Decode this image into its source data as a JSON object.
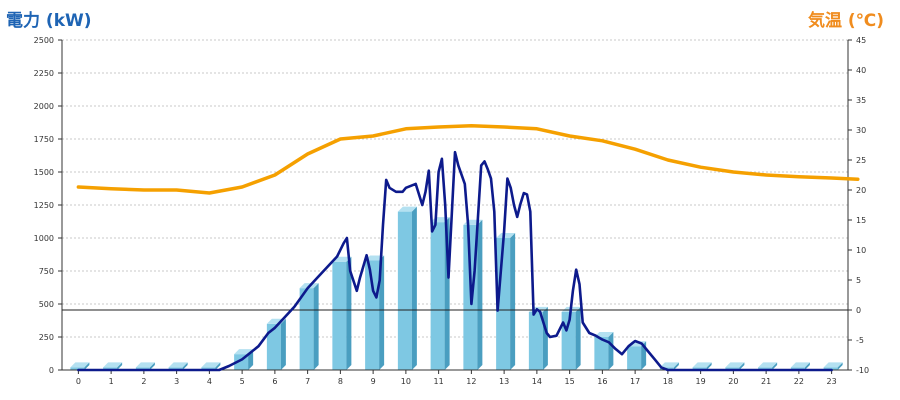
{
  "chart_data": {
    "type": "bar",
    "title_left": "電力 (kW)",
    "title_right": "気温 (℃)",
    "title_left_color": "#1e64b4",
    "title_right_color": "#f08c1e",
    "categories": [
      "0",
      "1",
      "2",
      "3",
      "4",
      "5",
      "6",
      "7",
      "8",
      "9",
      "10",
      "11",
      "12",
      "13",
      "14",
      "15",
      "16",
      "17",
      "18",
      "19",
      "20",
      "21",
      "22",
      "23"
    ],
    "left_axis": {
      "ylim": [
        0,
        2500
      ],
      "ticks": [
        0,
        250,
        500,
        750,
        1000,
        1250,
        1500,
        1750,
        2000,
        2250,
        2500
      ]
    },
    "right_axis": {
      "ylim": [
        -10,
        45
      ],
      "ticks": [
        -10,
        -5,
        0,
        5,
        10,
        15,
        20,
        25,
        30,
        35,
        40,
        45
      ]
    },
    "reference_line_temperature": 0,
    "grid": true,
    "series": [
      {
        "kind": "bar",
        "axis": "left",
        "color": "#7ec8e3",
        "values": [
          20,
          20,
          20,
          20,
          20,
          120,
          350,
          620,
          820,
          830,
          1200,
          1120,
          1100,
          1000,
          440,
          440,
          250,
          180,
          20,
          20,
          20,
          20,
          20,
          20
        ]
      },
      {
        "kind": "line",
        "axis": "left",
        "color": "#0d1a8c",
        "points": [
          [
            0,
            0
          ],
          [
            1,
            0
          ],
          [
            2,
            0
          ],
          [
            3,
            0
          ],
          [
            4,
            0
          ],
          [
            4.3,
            0
          ],
          [
            4.6,
            30
          ],
          [
            5,
            80
          ],
          [
            5.5,
            180
          ],
          [
            5.8,
            280
          ],
          [
            6,
            320
          ],
          [
            6.3,
            400
          ],
          [
            6.6,
            480
          ],
          [
            7,
            620
          ],
          [
            7.3,
            700
          ],
          [
            7.6,
            780
          ],
          [
            7.9,
            860
          ],
          [
            8.1,
            960
          ],
          [
            8.2,
            1000
          ],
          [
            8.3,
            750
          ],
          [
            8.5,
            600
          ],
          [
            8.6,
            700
          ],
          [
            8.8,
            870
          ],
          [
            8.9,
            760
          ],
          [
            9,
            600
          ],
          [
            9.1,
            550
          ],
          [
            9.2,
            680
          ],
          [
            9.3,
            1100
          ],
          [
            9.4,
            1440
          ],
          [
            9.5,
            1380
          ],
          [
            9.7,
            1350
          ],
          [
            9.9,
            1350
          ],
          [
            10,
            1380
          ],
          [
            10.3,
            1410
          ],
          [
            10.5,
            1250
          ],
          [
            10.6,
            1350
          ],
          [
            10.7,
            1510
          ],
          [
            10.8,
            1050
          ],
          [
            10.9,
            1100
          ],
          [
            11,
            1500
          ],
          [
            11.1,
            1600
          ],
          [
            11.2,
            1250
          ],
          [
            11.3,
            700
          ],
          [
            11.5,
            1650
          ],
          [
            11.6,
            1550
          ],
          [
            11.8,
            1410
          ],
          [
            11.9,
            1100
          ],
          [
            12,
            500
          ],
          [
            12.1,
            750
          ],
          [
            12.2,
            1150
          ],
          [
            12.3,
            1550
          ],
          [
            12.4,
            1580
          ],
          [
            12.5,
            1520
          ],
          [
            12.6,
            1450
          ],
          [
            12.7,
            1200
          ],
          [
            12.8,
            450
          ],
          [
            13,
            1050
          ],
          [
            13.1,
            1450
          ],
          [
            13.2,
            1380
          ],
          [
            13.3,
            1250
          ],
          [
            13.4,
            1160
          ],
          [
            13.5,
            1260
          ],
          [
            13.6,
            1340
          ],
          [
            13.7,
            1330
          ],
          [
            13.8,
            1200
          ],
          [
            13.9,
            420
          ],
          [
            14,
            460
          ],
          [
            14.1,
            440
          ],
          [
            14.3,
            280
          ],
          [
            14.4,
            250
          ],
          [
            14.6,
            260
          ],
          [
            14.8,
            360
          ],
          [
            14.9,
            300
          ],
          [
            15,
            380
          ],
          [
            15.1,
            600
          ],
          [
            15.2,
            760
          ],
          [
            15.3,
            650
          ],
          [
            15.4,
            360
          ],
          [
            15.6,
            280
          ],
          [
            15.8,
            260
          ],
          [
            16,
            230
          ],
          [
            16.2,
            210
          ],
          [
            16.4,
            160
          ],
          [
            16.6,
            120
          ],
          [
            16.8,
            180
          ],
          [
            17,
            220
          ],
          [
            17.2,
            200
          ],
          [
            17.4,
            140
          ],
          [
            17.6,
            80
          ],
          [
            17.8,
            20
          ],
          [
            18,
            0
          ],
          [
            19,
            0
          ],
          [
            20,
            0
          ],
          [
            21,
            0
          ],
          [
            22,
            0
          ],
          [
            23,
            0
          ]
        ]
      },
      {
        "kind": "line",
        "axis": "right",
        "color": "#f5a000",
        "points": [
          [
            0,
            20.5
          ],
          [
            1,
            20.2
          ],
          [
            2,
            20.0
          ],
          [
            3,
            20.0
          ],
          [
            4,
            19.5
          ],
          [
            5,
            20.5
          ],
          [
            6,
            22.5
          ],
          [
            7,
            26.0
          ],
          [
            8,
            28.5
          ],
          [
            9,
            29.0
          ],
          [
            10,
            30.2
          ],
          [
            11,
            30.5
          ],
          [
            12,
            30.7
          ],
          [
            13,
            30.5
          ],
          [
            14,
            30.2
          ],
          [
            15,
            29.0
          ],
          [
            16,
            28.2
          ],
          [
            17,
            26.8
          ],
          [
            18,
            25.0
          ],
          [
            19,
            23.8
          ],
          [
            20,
            23.0
          ],
          [
            21,
            22.5
          ],
          [
            22,
            22.2
          ],
          [
            23,
            22.0
          ],
          [
            23.8,
            21.8
          ]
        ]
      }
    ]
  }
}
